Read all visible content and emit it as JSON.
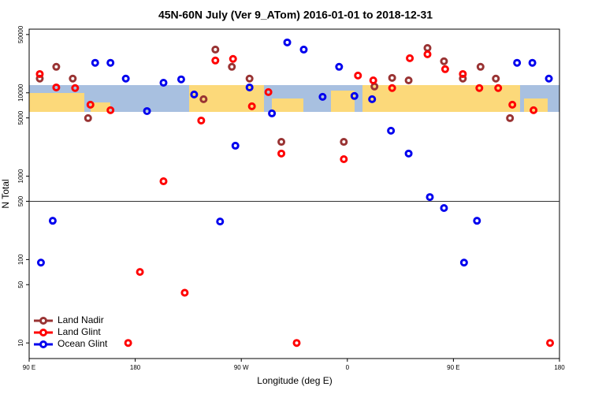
{
  "chart_data": {
    "type": "scatter",
    "title": "45N-60N July (Ver 9_ATom)   2016-01-01 to 2018-12-31",
    "x_label": "Longitude (deg E)",
    "y_label": "N Total",
    "log_y": true,
    "hline": 500,
    "legend": "lower left",
    "xlim": [
      -270,
      180
    ],
    "xticks": [
      {
        "value": -270,
        "label": "90 E"
      },
      {
        "value": -180,
        "label": "180"
      },
      {
        "value": -90,
        "label": "90 W"
      },
      0,
      {
        "value": 90,
        "label": "90 E"
      },
      {
        "value": 180,
        "label": "180"
      }
    ],
    "ylim": [
      6.5,
      58000
    ],
    "yticks": [
      10,
      50,
      100,
      500,
      1000,
      5000,
      10000,
      50000
    ],
    "series": [
      {
        "name": "Land Nadir",
        "color": "#993333",
        "x": [
          -261,
          -247,
          -233,
          -220,
          -122,
          -112,
          -98,
          -83,
          -56,
          -3,
          23,
          38,
          52,
          68,
          82,
          98,
          113,
          126,
          138
        ],
        "values": [
          14800,
          20500,
          14800,
          4970,
          8380,
          33000,
          20500,
          14800,
          2580,
          2580,
          11900,
          15100,
          14100,
          34500,
          23900,
          14800,
          20500,
          14800,
          4970
        ]
      },
      {
        "name": "Land Glint",
        "color": "#ff0000",
        "x": [
          -261,
          -247,
          -231,
          -218,
          -201,
          -186,
          -176,
          -156,
          -138,
          -124,
          -112,
          -97,
          -81,
          -67,
          -56,
          -43,
          -3,
          9,
          22,
          38,
          53,
          68,
          83,
          98,
          112,
          128,
          140,
          158,
          172
        ],
        "values": [
          16800,
          11600,
          11400,
          7200,
          6180,
          10,
          71,
          869,
          40,
          4650,
          24400,
          25500,
          6890,
          10200,
          1870,
          10,
          1600,
          16100,
          14100,
          11400,
          26000,
          29000,
          19200,
          16800,
          11400,
          11400,
          7200,
          6180,
          10
        ]
      },
      {
        "name": "Ocean Glint",
        "color": "#0000ee",
        "x": [
          -260,
          -250,
          -214,
          -201,
          -188,
          -170,
          -156,
          -141,
          -130,
          -108,
          -95,
          -83,
          -64,
          -51,
          -37,
          -21,
          -7,
          6,
          21,
          37,
          52,
          70,
          82,
          99,
          110,
          144,
          157,
          171
        ],
        "values": [
          92,
          292,
          22900,
          22900,
          14800,
          6040,
          13200,
          14500,
          9550,
          286,
          2320,
          11600,
          5660,
          40200,
          33000,
          8950,
          20500,
          9160,
          8380,
          3510,
          1870,
          562,
          415,
          92,
          292,
          22900,
          22900,
          14800
        ]
      }
    ]
  }
}
